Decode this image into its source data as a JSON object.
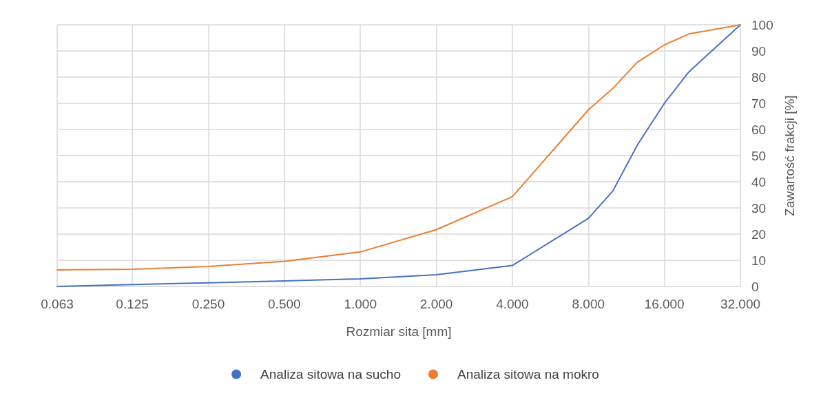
{
  "chart_data": {
    "type": "line",
    "xlabel": "Rozmiar sita [mm]",
    "ylabel": "Zawartość frakcji [%]",
    "log": "x",
    "x": [
      0.063,
      0.125,
      0.25,
      0.5,
      1,
      2,
      4,
      8,
      10,
      12.5,
      16,
      20,
      32
    ],
    "series": [
      {
        "name": "Analiza sitowa na sucho",
        "color": "#4472c4",
        "values": [
          0,
          0.7,
          1.4,
          2.1,
          2.9,
          4.5,
          8,
          26,
          36.5,
          54,
          70,
          82,
          100
        ]
      },
      {
        "name": "Analiza sitowa na mokro",
        "color": "#ed7d31",
        "values": [
          6.3,
          6.6,
          7.6,
          9.6,
          13.2,
          21.7,
          34.3,
          67.5,
          75.7,
          85.7,
          92.3,
          96.5,
          100
        ]
      }
    ],
    "xlim": [
      0.063,
      32
    ],
    "xticks": [
      {
        "value": 0.063,
        "label": "0.063"
      },
      {
        "value": 0.125,
        "label": "0.125"
      },
      {
        "value": 0.25,
        "label": "0.250"
      },
      {
        "value": 0.5,
        "label": "0.500"
      },
      {
        "value": 1,
        "label": "1.000"
      },
      {
        "value": 2,
        "label": "2.000"
      },
      {
        "value": 4,
        "label": "4.000"
      },
      {
        "value": 8,
        "label": "8.000"
      },
      {
        "value": 16,
        "label": "16.000"
      },
      {
        "value": 32,
        "label": "32.000"
      }
    ],
    "ylim": [
      0,
      100
    ],
    "yticks": [
      0,
      10,
      20,
      30,
      40,
      50,
      60,
      70,
      80,
      90,
      100
    ],
    "grid": true,
    "legend": "bottom",
    "marker": "none",
    "line_style": "solid"
  }
}
